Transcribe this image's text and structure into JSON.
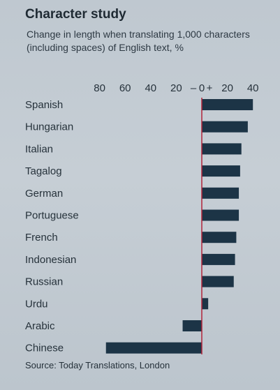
{
  "title": "Character study",
  "subtitle": "Change in length when translating 1,000 characters (including spaces) of English text, %",
  "source": "Source: Today Translations, London",
  "axis": {
    "minus_sign": "–",
    "plus_sign": "+"
  },
  "chart_data": {
    "type": "bar",
    "orientation": "horizontal",
    "categories": [
      "Spanish",
      "Hungarian",
      "Italian",
      "Tagalog",
      "German",
      "Portuguese",
      "French",
      "Indonesian",
      "Russian",
      "Urdu",
      "Arabic",
      "Chinese"
    ],
    "values": [
      40,
      36,
      31,
      30,
      29,
      29,
      27,
      26,
      25,
      5,
      -15,
      -75
    ],
    "xlim": [
      -85,
      40
    ],
    "xticks": [
      {
        "v": -80,
        "label": "80"
      },
      {
        "v": -60,
        "label": "60"
      },
      {
        "v": -40,
        "label": "40"
      },
      {
        "v": -20,
        "label": "20"
      },
      {
        "v": 0,
        "label": "0"
      },
      {
        "v": 20,
        "label": "20"
      },
      {
        "v": 40,
        "label": "40"
      }
    ],
    "colors": {
      "bar": "#1c3446",
      "zero_line": "#b2243a"
    }
  }
}
